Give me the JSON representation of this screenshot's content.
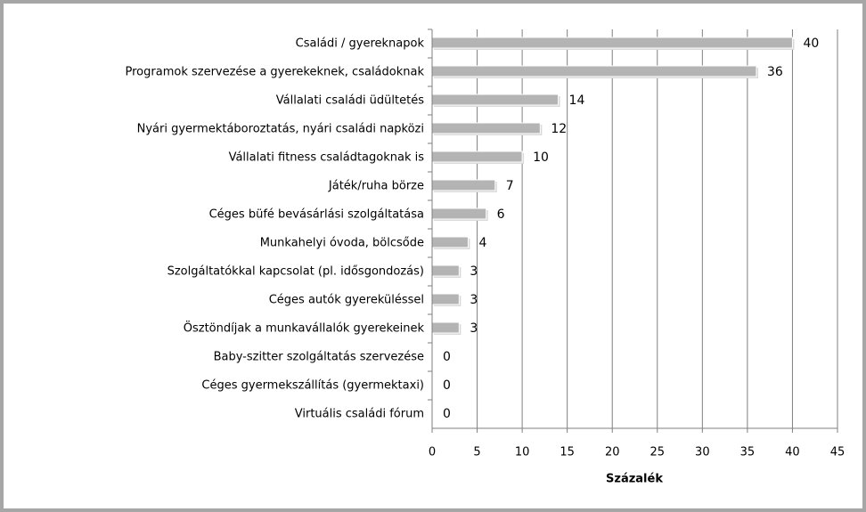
{
  "chart_data": {
    "type": "barh",
    "categories": [
      "Családi / gyereknapok",
      "Programok szervezése a gyerekeknek, családoknak",
      "Vállalati családi üdültetés",
      "Nyári gyermektáboroztatás, nyári családi napközi",
      "Vállalati fitness családtagoknak is",
      "Játék/ruha börze",
      "Céges büfé bevásárlási szolgáltatása",
      "Munkahelyi óvoda, bölcsőde",
      "Szolgáltatókkal kapcsolat (pl. idősgondozás)",
      "Céges autók gyereküléssel",
      "Ösztöndíjak a munkavállalók gyerekeinek",
      "Baby-szitter szolgáltatás szervezése",
      "Céges gyermekszállítás (gyermektaxi)",
      "Virtuális családi fórum"
    ],
    "values": [
      40,
      36,
      14,
      12,
      10,
      7,
      6,
      4,
      3,
      3,
      3,
      0,
      0,
      0
    ],
    "color": "#b4b4b4",
    "xlabel": "Százalék",
    "xlim": [
      0,
      45
    ],
    "xticks": [
      0,
      5,
      10,
      15,
      20,
      25,
      30,
      35,
      40,
      45
    ],
    "grid": true
  }
}
